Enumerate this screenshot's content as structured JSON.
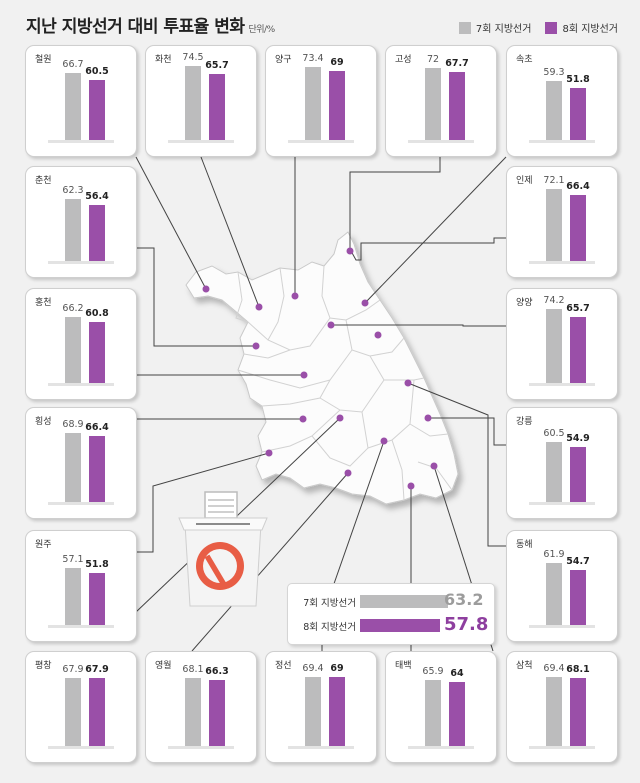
{
  "title": "지난 지방선거 대비 투표율 변화",
  "unit": "단위/%",
  "legend": [
    {
      "label": "7회 지방선거",
      "color": "#bcbcbd"
    },
    {
      "label": "8회 지방선거",
      "color": "#9a4fa8"
    }
  ],
  "chart_data": {
    "type": "bar",
    "title": "지난 지방선거 대비 투표율 변화",
    "unit": "단위/%",
    "categories": [
      "철원",
      "화천",
      "양구",
      "고성",
      "속초",
      "춘천",
      "인제",
      "홍천",
      "양양",
      "횡성",
      "강릉",
      "원주",
      "동해",
      "평창",
      "영월",
      "정선",
      "태백",
      "삼척"
    ],
    "series": [
      {
        "name": "7회 지방선거",
        "values": [
          66.7,
          74.5,
          73.4,
          72,
          59.3,
          62.3,
          72.1,
          66.2,
          74.2,
          68.9,
          60.5,
          57.1,
          61.9,
          67.9,
          68.1,
          69.4,
          65.9,
          69.4
        ]
      },
      {
        "name": "8회 지방선거",
        "values": [
          60.5,
          65.7,
          69,
          67.7,
          51.8,
          56.4,
          66.4,
          60.8,
          65.7,
          66.4,
          54.9,
          51.8,
          54.7,
          67.9,
          66.3,
          69,
          64,
          68.1
        ]
      }
    ],
    "total": {
      "labels": [
        "7회 지방선거",
        "8회 지방선거"
      ],
      "values": [
        63.2,
        57.8
      ]
    }
  }
}
